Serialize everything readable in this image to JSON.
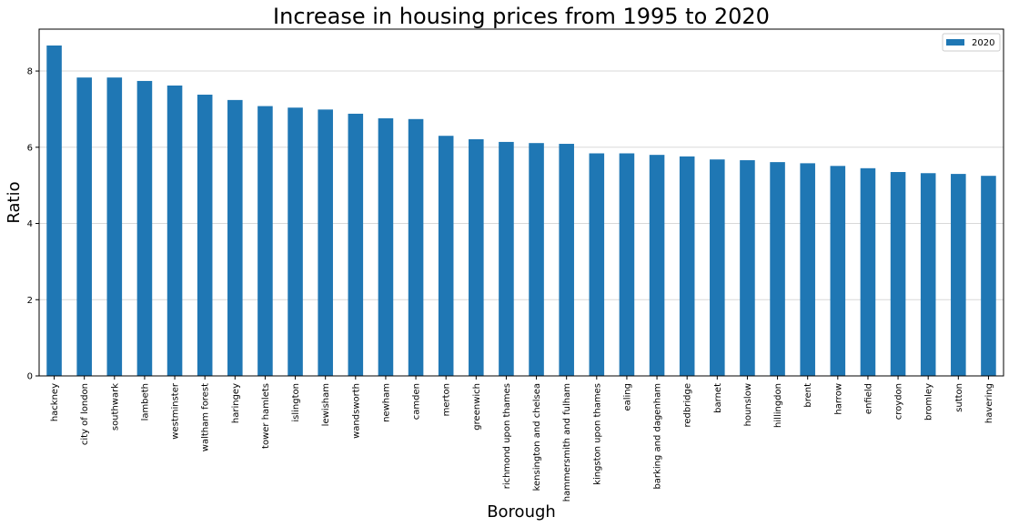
{
  "chart_data": {
    "type": "bar",
    "title": "Increase in housing prices from 1995 to 2020",
    "xlabel": "Borough",
    "ylabel": "Ratio",
    "ylim": [
      0,
      9.1
    ],
    "yticks": [
      0,
      2,
      4,
      6,
      8
    ],
    "grid": "y",
    "legend_position": "top-right",
    "bar_color": "#1f77b4",
    "categories": [
      "hackney",
      "city of london",
      "southwark",
      "lambeth",
      "westminster",
      "waltham forest",
      "haringey",
      "tower hamlets",
      "islington",
      "lewisham",
      "wandsworth",
      "newham",
      "camden",
      "merton",
      "greenwich",
      "richmond upon thames",
      "kensington and chelsea",
      "hammersmith and fulham",
      "kingston upon thames",
      "ealing",
      "barking and dagenham",
      "redbridge",
      "barnet",
      "hounslow",
      "hillingdon",
      "brent",
      "harrow",
      "enfield",
      "croydon",
      "bromley",
      "sutton",
      "havering"
    ],
    "series": [
      {
        "name": "2020",
        "values": [
          8.67,
          7.83,
          7.83,
          7.74,
          7.62,
          7.38,
          7.24,
          7.08,
          7.04,
          6.99,
          6.88,
          6.76,
          6.74,
          6.3,
          6.21,
          6.14,
          6.11,
          6.09,
          5.84,
          5.84,
          5.8,
          5.76,
          5.68,
          5.66,
          5.61,
          5.58,
          5.51,
          5.45,
          5.35,
          5.32,
          5.3,
          5.25
        ]
      }
    ]
  }
}
